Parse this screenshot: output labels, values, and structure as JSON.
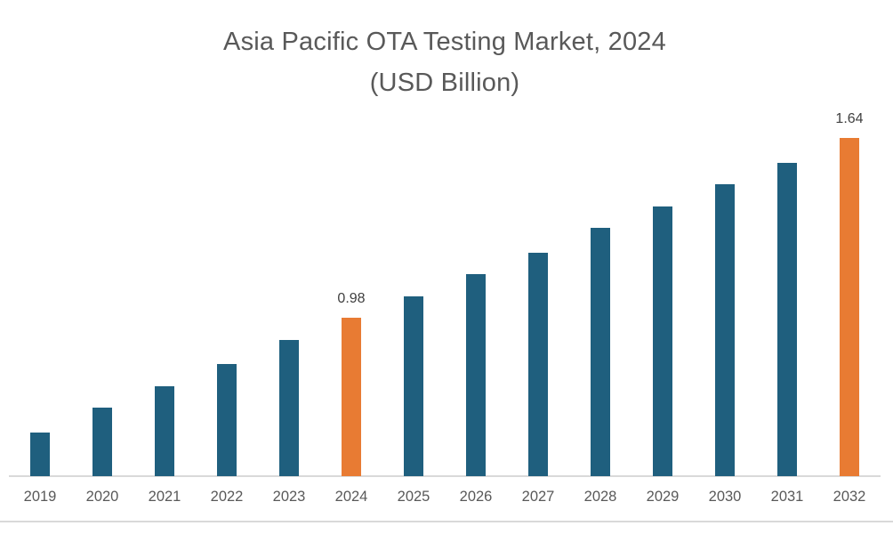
{
  "page": {
    "background_color": "#FFFFFF"
  },
  "chart_data": {
    "type": "bar",
    "title": "Asia Pacific OTA Testing Market, 2024",
    "subtitle": "(USD Billion)",
    "xlabel": "",
    "ylabel": "",
    "categories": [
      "2019",
      "2020",
      "2021",
      "2022",
      "2023",
      "2024",
      "2025",
      "2026",
      "2027",
      "2028",
      "2029",
      "2030",
      "2031",
      "2032"
    ],
    "values": [
      0.56,
      0.65,
      0.73,
      0.81,
      0.9,
      0.98,
      1.06,
      1.14,
      1.22,
      1.31,
      1.39,
      1.47,
      1.55,
      1.64
    ],
    "values_note": "Only 2024 (0.98) and 2032 (1.64) are labeled on the chart; remaining values estimated from bar heights",
    "data_labels": {
      "2024": "0.98",
      "2032": "1.64"
    },
    "highlight_categories": [
      "2024",
      "2032"
    ],
    "ylim": [
      0.4,
      1.64
    ],
    "grid": false,
    "legend": false,
    "colors": {
      "default_bar": "#1F5F7E",
      "highlight_bar": "#E87B33",
      "title_text": "#595959",
      "axis_label_text": "#595959",
      "data_label_text": "#404040",
      "axis_line": "#D9D9D9"
    }
  }
}
